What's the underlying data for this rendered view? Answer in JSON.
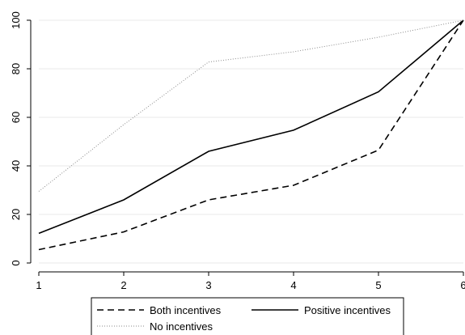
{
  "chart_data": {
    "type": "line",
    "x": [
      1,
      2,
      3,
      4,
      5,
      6
    ],
    "xlim": [
      1,
      6
    ],
    "ylim": [
      0,
      100
    ],
    "xticks": [
      "1",
      "2",
      "3",
      "4",
      "5",
      "6"
    ],
    "yticks": [
      "0",
      "20",
      "40",
      "60",
      "80",
      "100"
    ],
    "grid": "horizontal",
    "legend_position": "bottom",
    "series": [
      {
        "name": "Both incentives",
        "style": "dashed",
        "color": "#000000",
        "values": [
          5.5,
          12.8,
          26,
          32,
          46.5,
          100
        ]
      },
      {
        "name": "Positive incentives",
        "style": "solid",
        "color": "#000000",
        "values": [
          12.2,
          26,
          46,
          54.7,
          70.5,
          100
        ]
      },
      {
        "name": "No incentives",
        "style": "dotted",
        "color": "#8a8a8a",
        "values": [
          29.5,
          57,
          82.8,
          87,
          93,
          100
        ]
      }
    ]
  }
}
